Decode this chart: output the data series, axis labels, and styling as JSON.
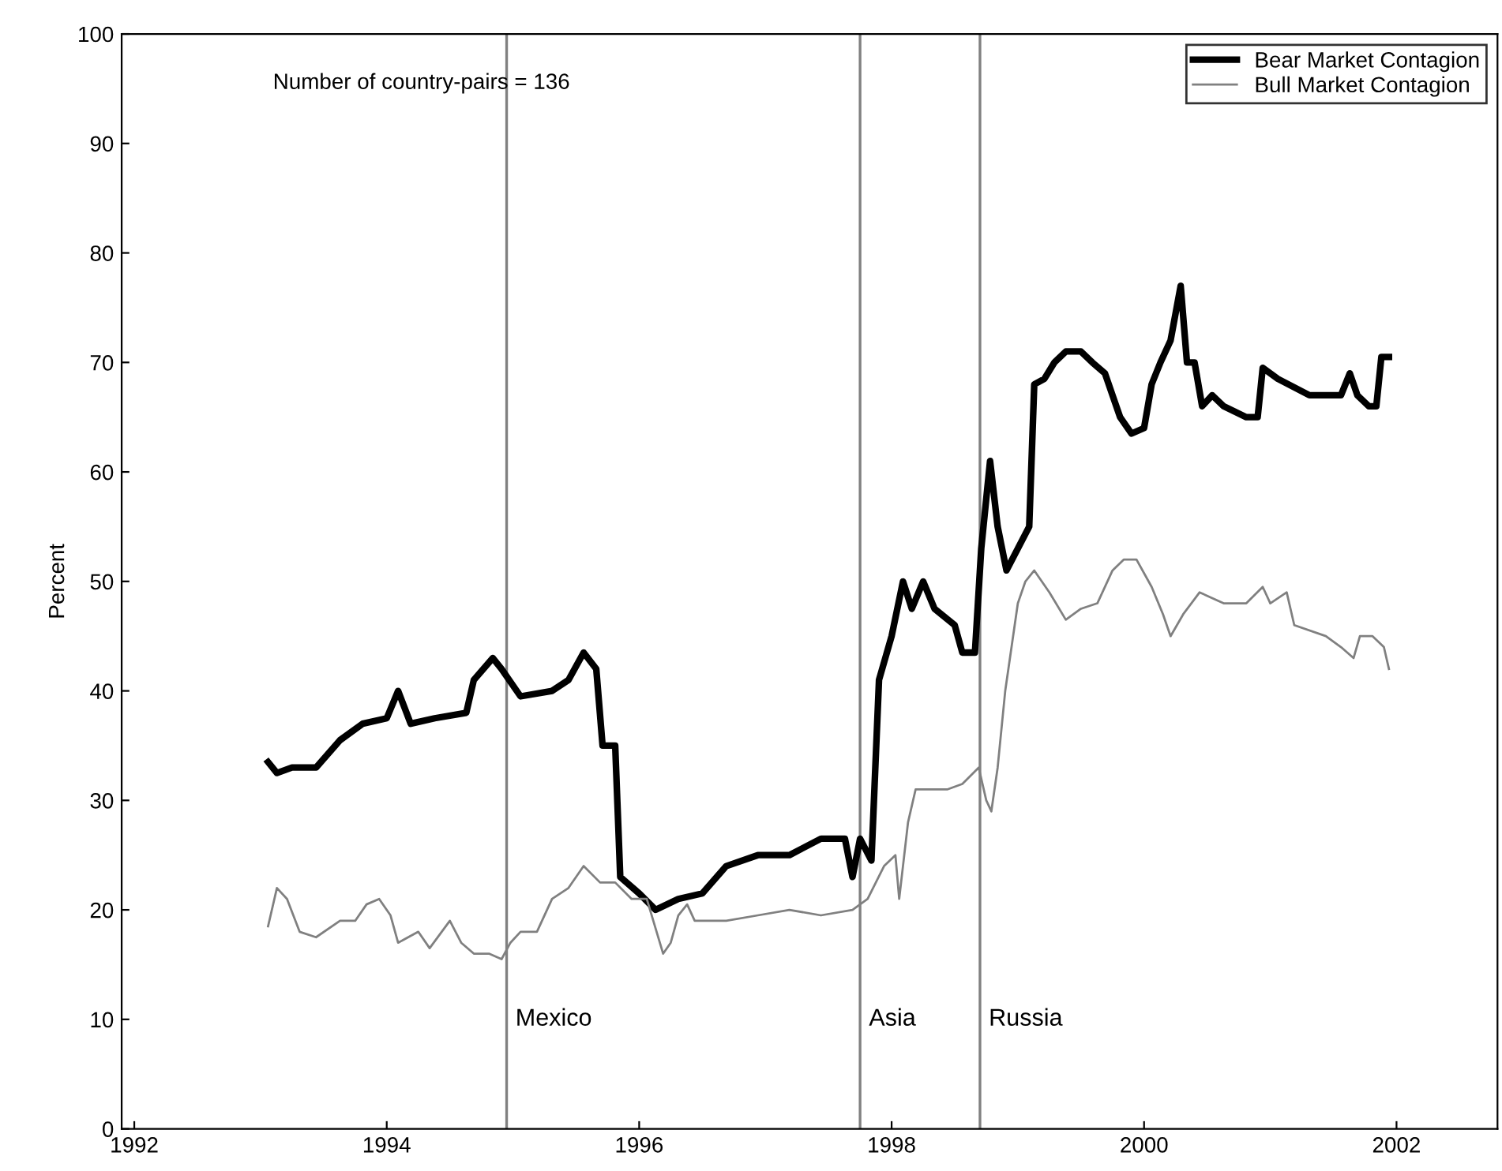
{
  "chart_data": {
    "type": "line",
    "ylabel": "Percent",
    "xlim": [
      1991.9,
      2002.8
    ],
    "ylim": [
      0,
      100
    ],
    "xticks": [
      1992,
      1994,
      1996,
      1998,
      2000,
      2002
    ],
    "yticks": [
      0,
      10,
      20,
      30,
      40,
      50,
      60,
      70,
      80,
      90,
      100
    ],
    "grid": false,
    "legend": "top right",
    "marker": "none",
    "line_style": "solid",
    "annotations": [
      "Number of country-pairs = 136"
    ],
    "ref_lines": [
      {
        "axis": "x",
        "value": 1994.95,
        "label": "Mexico",
        "color": "#808080"
      },
      {
        "axis": "x",
        "value": 1997.75,
        "label": "Asia",
        "color": "#808080"
      },
      {
        "axis": "x",
        "value": 1998.7,
        "label": "Russia",
        "color": "#808080"
      }
    ],
    "series": [
      {
        "name": "Bear Market Contagion",
        "color": "#000000",
        "x": [
          1993.06,
          1993.13,
          1993.25,
          1993.44,
          1993.63,
          1993.81,
          1994.0,
          1994.09,
          1994.19,
          1994.38,
          1994.63,
          1994.69,
          1994.84,
          1994.91,
          1995.06,
          1995.31,
          1995.44,
          1995.56,
          1995.66,
          1995.71,
          1995.81,
          1995.85,
          1996.0,
          1996.13,
          1996.31,
          1996.5,
          1996.69,
          1996.94,
          1997.19,
          1997.44,
          1997.63,
          1997.69,
          1997.75,
          1997.84,
          1997.9,
          1998.0,
          1998.09,
          1998.16,
          1998.25,
          1998.34,
          1998.5,
          1998.56,
          1998.66,
          1998.71,
          1998.78,
          1998.84,
          1998.91,
          1999.0,
          1999.09,
          1999.13,
          1999.21,
          1999.29,
          1999.38,
          1999.5,
          1999.59,
          1999.69,
          1999.81,
          1999.9,
          2000.0,
          2000.06,
          2000.13,
          2000.21,
          2000.29,
          2000.34,
          2000.4,
          2000.46,
          2000.54,
          2000.63,
          2000.81,
          2000.9,
          2000.94,
          2001.06,
          2001.31,
          2001.56,
          2001.63,
          2001.69,
          2001.78,
          2001.84,
          2001.88,
          2001.94
        ],
        "values": [
          33.5,
          32.5,
          33,
          33,
          35.5,
          37,
          37.5,
          40,
          37,
          37.5,
          38,
          41,
          43,
          42,
          39.5,
          40,
          41,
          43.5,
          42,
          35,
          35,
          23,
          21.5,
          20,
          21,
          21.5,
          24,
          25,
          25,
          26.5,
          26.5,
          23,
          26.5,
          24.5,
          41,
          45,
          50,
          47.5,
          50,
          47.5,
          46,
          43.5,
          43.5,
          53,
          61,
          55,
          51,
          53,
          55,
          68,
          68.5,
          70,
          71,
          71,
          70,
          69,
          65,
          63.5,
          64,
          68,
          70,
          72,
          77,
          70,
          70,
          66,
          67,
          66,
          65,
          65,
          69.5,
          68.5,
          67,
          67,
          69,
          67,
          66,
          66,
          70.5,
          70.5
        ]
      },
      {
        "name": "Bull Market Contagion",
        "color": "#808080",
        "x": [
          1993.06,
          1993.13,
          1993.21,
          1993.31,
          1993.44,
          1993.63,
          1993.75,
          1993.84,
          1993.94,
          1994.03,
          1994.09,
          1994.25,
          1994.34,
          1994.5,
          1994.59,
          1994.69,
          1994.81,
          1994.91,
          1994.98,
          1995.06,
          1995.19,
          1995.31,
          1995.44,
          1995.56,
          1995.69,
          1995.81,
          1995.94,
          1996.06,
          1996.19,
          1996.25,
          1996.31,
          1996.38,
          1996.44,
          1996.69,
          1996.94,
          1997.19,
          1997.44,
          1997.69,
          1997.81,
          1997.94,
          1998.03,
          1998.06,
          1998.13,
          1998.19,
          1998.31,
          1998.44,
          1998.56,
          1998.69,
          1998.75,
          1998.79,
          1998.84,
          1998.9,
          1999.0,
          1999.06,
          1999.13,
          1999.25,
          1999.38,
          1999.5,
          1999.63,
          1999.75,
          1999.84,
          1999.94,
          2000.06,
          2000.15,
          2000.21,
          2000.31,
          2000.44,
          2000.63,
          2000.81,
          2000.94,
          2001.0,
          2001.13,
          2001.19,
          2001.44,
          2001.56,
          2001.66,
          2001.71,
          2001.81,
          2001.9,
          2001.94
        ],
        "values": [
          18.5,
          22,
          21,
          18,
          17.5,
          19,
          19,
          20.5,
          21,
          19.5,
          17,
          18,
          16.5,
          19,
          17,
          16,
          16,
          15.5,
          17,
          18,
          18,
          21,
          22,
          24,
          22.5,
          22.5,
          21,
          21,
          16,
          17,
          19.5,
          20.5,
          19,
          19,
          19.5,
          20,
          19.5,
          20,
          21,
          24,
          25,
          21,
          28,
          31,
          31,
          31,
          31.5,
          33,
          30,
          29,
          33,
          40,
          48,
          50,
          51,
          49,
          46.5,
          47.5,
          48,
          51,
          52,
          52,
          49.5,
          47,
          45,
          47,
          49,
          48,
          48,
          49.5,
          48,
          49,
          46,
          45,
          44,
          43,
          45,
          45,
          44,
          42
        ]
      }
    ]
  }
}
